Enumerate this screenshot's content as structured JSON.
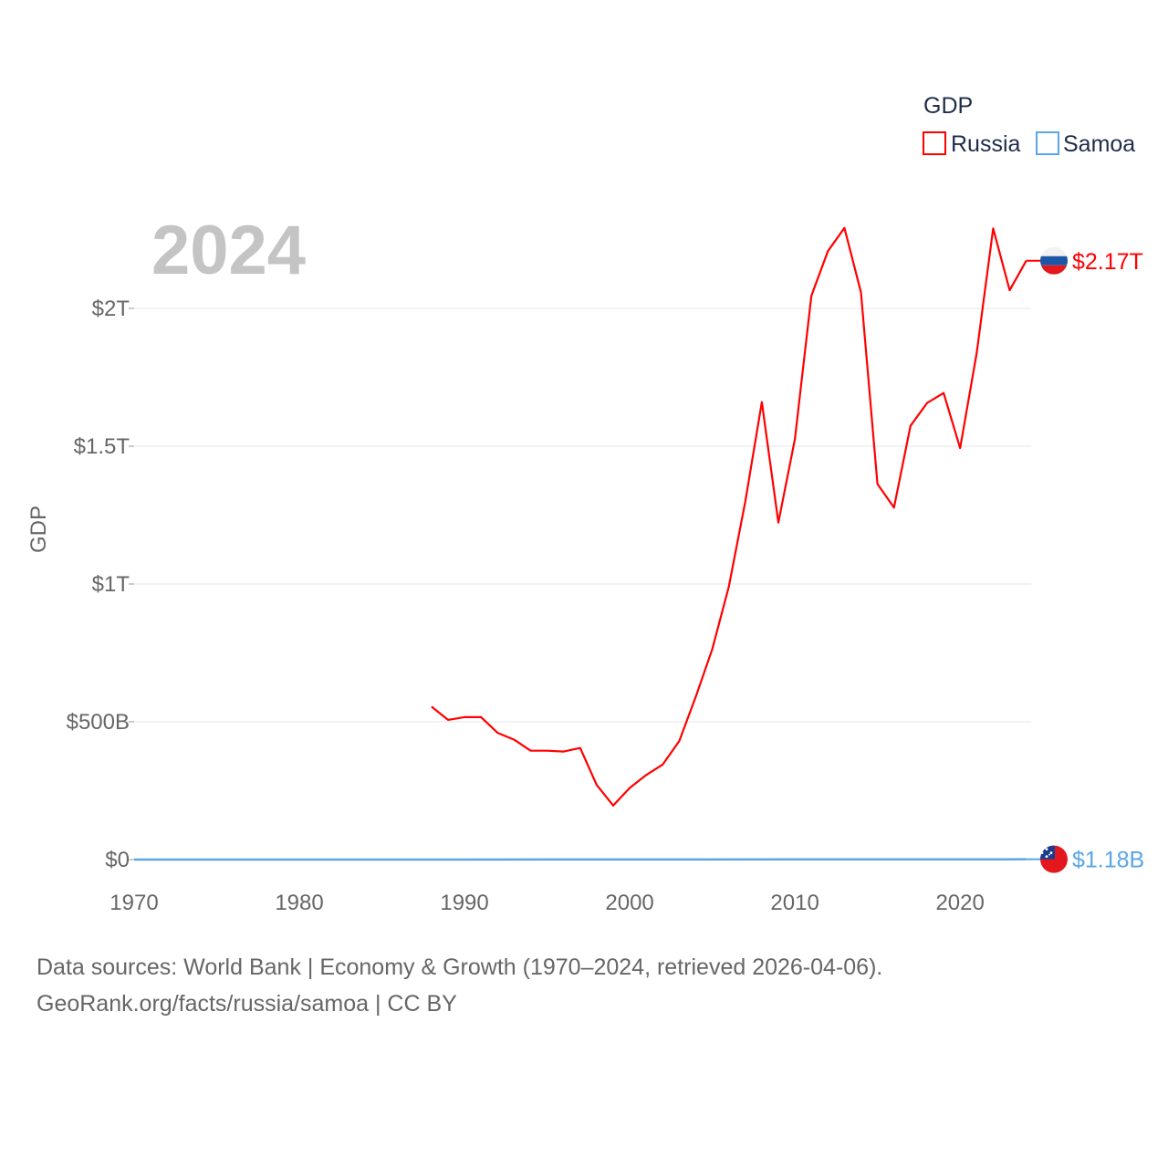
{
  "chart_data": {
    "type": "line",
    "title": "",
    "year_label": "2024",
    "xlabel": "",
    "ylabel": "GDP",
    "xlim": [
      1970,
      2024.3
    ],
    "ylim": [
      0,
      2300000000000
    ],
    "x_ticks": [
      1970,
      1980,
      1990,
      2000,
      2010,
      2020
    ],
    "x_tick_labels": [
      "1970",
      "1980",
      "1990",
      "2000",
      "2010",
      "2020"
    ],
    "y_ticks": [
      0,
      500000000000,
      1000000000000,
      1500000000000,
      2000000000000
    ],
    "y_tick_labels": [
      "$0",
      "$500B",
      "$1T",
      "$1.5T",
      "$2T"
    ],
    "grid": true,
    "legend": {
      "title": "GDP",
      "position": "top-right"
    },
    "series": [
      {
        "name": "Russia",
        "color": "#ff0000",
        "flag": "russia-flag-icon",
        "end_label": "$2.17T",
        "x": [
          1988,
          1989,
          1990,
          1991,
          1992,
          1993,
          1994,
          1995,
          1996,
          1997,
          1998,
          1999,
          2000,
          2001,
          2002,
          2003,
          2004,
          2005,
          2006,
          2007,
          2008,
          2009,
          2010,
          2011,
          2012,
          2013,
          2014,
          2015,
          2016,
          2017,
          2018,
          2019,
          2020,
          2021,
          2022,
          2023,
          2024
        ],
        "values": [
          555000000000,
          507000000000,
          517000000000,
          517000000000,
          460000000000,
          435000000000,
          395000000000,
          395000000000,
          392000000000,
          405000000000,
          271000000000,
          196000000000,
          260000000000,
          307000000000,
          345000000000,
          430000000000,
          591000000000,
          764000000000,
          990000000000,
          1300000000000,
          1660000000000,
          1223000000000,
          1525000000000,
          2046000000000,
          2208000000000,
          2292000000000,
          2059000000000,
          1363000000000,
          1277000000000,
          1574000000000,
          1657000000000,
          1693000000000,
          1493000000000,
          1837000000000,
          2290000000000,
          2066000000000,
          2173000000000
        ]
      },
      {
        "name": "Samoa",
        "color": "#5aa5e6",
        "flag": "samoa-flag-icon",
        "end_label": "$1.18B",
        "x": [
          1970,
          1975,
          1980,
          1985,
          1990,
          1995,
          2000,
          2005,
          2010,
          2015,
          2020,
          2023,
          2024
        ],
        "values": [
          30000000,
          60000000,
          110000000,
          120000000,
          120000000,
          170000000,
          240000000,
          430000000,
          640000000,
          800000000,
          870000000,
          950000000,
          1180000000
        ]
      }
    ]
  },
  "footer": {
    "line1": "Data sources: World Bank | Economy & Growth (1970–2024, retrieved 2026-04-06).",
    "line2": "GeoRank.org/facts/russia/samoa | CC BY"
  }
}
